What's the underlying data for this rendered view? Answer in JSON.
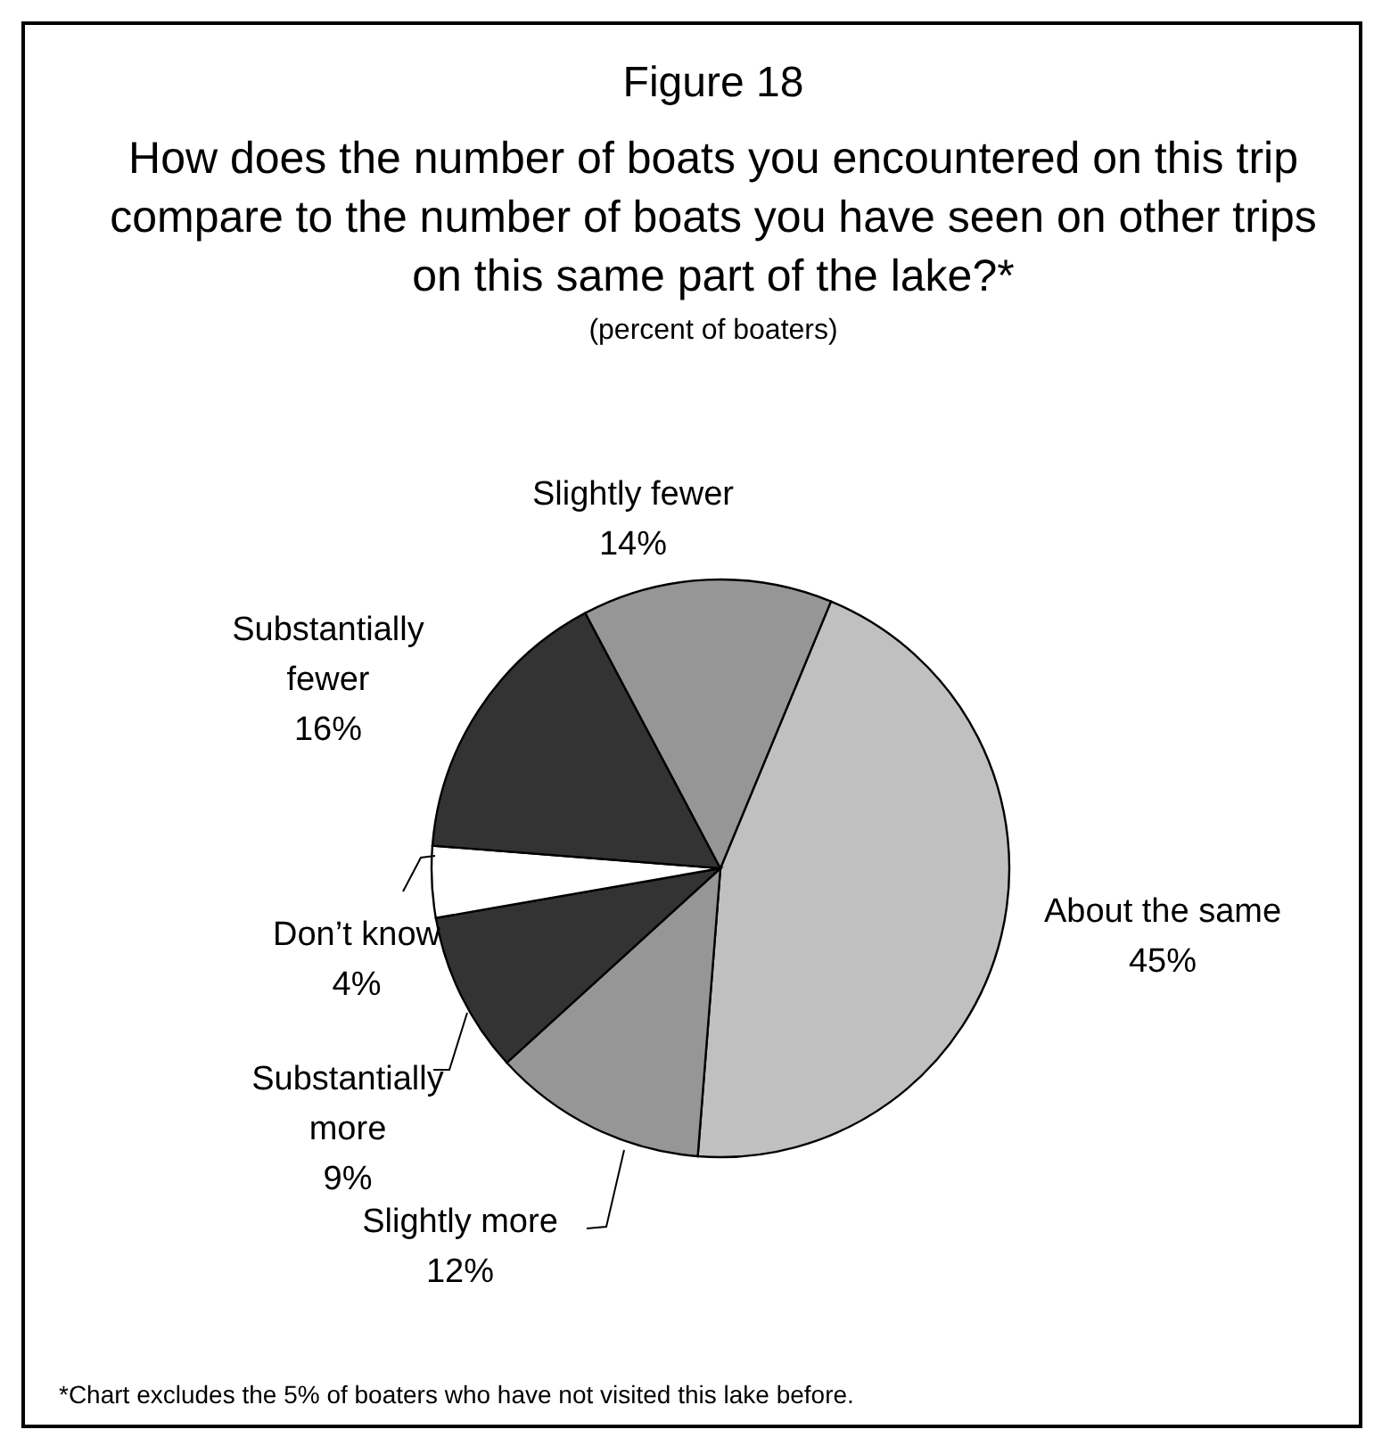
{
  "chart_data": {
    "type": "pie",
    "title": "Figure 18",
    "subtitle": "How does the number of boats you encountered on this trip compare to the number of boats you have seen on other trips on this same part of the lake?*",
    "categories": [
      "About the same",
      "Slightly more",
      "Substantially more",
      "Don’t know",
      "Substantially fewer",
      "Slightly fewer"
    ],
    "values": [
      45,
      12,
      9,
      4,
      16,
      14
    ],
    "value_labels": [
      "45%",
      "12%",
      "9%",
      "4%",
      "16%",
      "14%"
    ],
    "colors": [
      "#c0c0c0",
      "#969696",
      "#333333",
      "#ffffff",
      "#333333",
      "#969696"
    ],
    "annotations": [
      "(percent of boaters)",
      "*Chart excludes the 5% of boaters who have not visited this lake before."
    ]
  }
}
